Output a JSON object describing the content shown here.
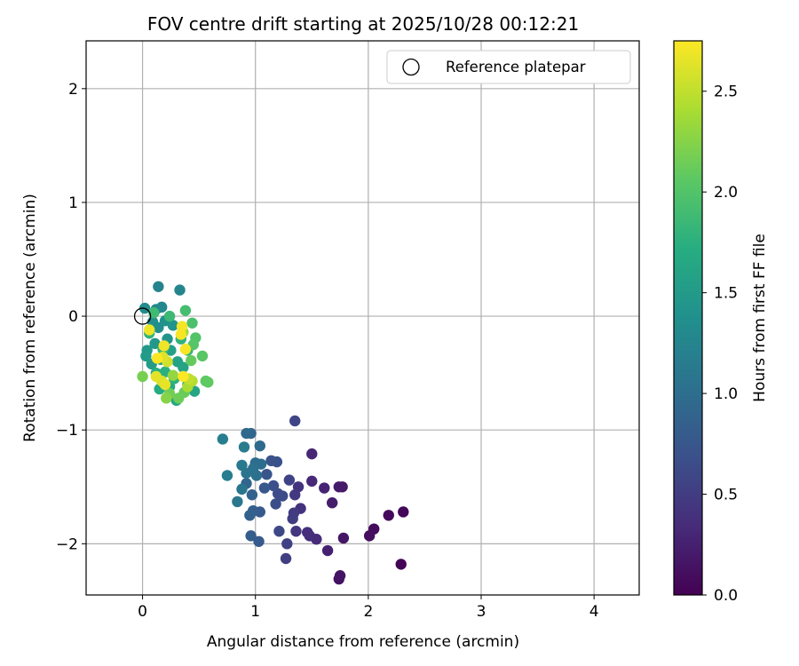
{
  "chart_data": {
    "type": "scatter",
    "title": "FOV centre drift starting at 2025/10/28 00:12:21",
    "xlabel": "Angular distance from reference (arcmin)",
    "ylabel": "Rotation from reference (arcmin)",
    "xlim": [
      -0.5,
      4.4
    ],
    "ylim": [
      -2.45,
      2.42
    ],
    "xticks": [
      0,
      1,
      2,
      3,
      4
    ],
    "yticks": [
      -2,
      -1,
      0,
      1,
      2
    ],
    "xtick_labels": [
      "0",
      "1",
      "2",
      "3",
      "4"
    ],
    "ytick_labels": [
      "−2",
      "−1",
      "0",
      "1",
      "2"
    ],
    "grid": true,
    "legend": {
      "position": "upper-right",
      "entries": [
        "Reference platepar"
      ]
    },
    "reference_point": {
      "x": 0,
      "y": 0,
      "label": "Reference platepar"
    },
    "colorbar": {
      "label": "Hours from first FF file",
      "colormap": "viridis",
      "range": [
        0.0,
        2.75
      ],
      "ticks": [
        0.0,
        0.5,
        1.0,
        1.5,
        2.0,
        2.5
      ],
      "tick_labels": [
        "0.0",
        "0.5",
        "1.0",
        "1.5",
        "2.0",
        "2.5"
      ]
    },
    "points": [
      {
        "x": 2.29,
        "y": -2.18,
        "t": 0.02
      },
      {
        "x": 2.31,
        "y": -1.72,
        "t": 0.04
      },
      {
        "x": 2.18,
        "y": -1.75,
        "t": 0.06
      },
      {
        "x": 2.05,
        "y": -1.87,
        "t": 0.08
      },
      {
        "x": 2.01,
        "y": -1.93,
        "t": 0.1
      },
      {
        "x": 1.74,
        "y": -2.31,
        "t": 0.12
      },
      {
        "x": 1.75,
        "y": -2.28,
        "t": 0.14
      },
      {
        "x": 1.78,
        "y": -1.95,
        "t": 0.16
      },
      {
        "x": 1.77,
        "y": -1.5,
        "t": 0.18
      },
      {
        "x": 1.74,
        "y": -1.5,
        "t": 0.2
      },
      {
        "x": 1.68,
        "y": -1.64,
        "t": 0.22
      },
      {
        "x": 1.64,
        "y": -2.06,
        "t": 0.25
      },
      {
        "x": 1.61,
        "y": -1.51,
        "t": 0.28
      },
      {
        "x": 1.5,
        "y": -1.21,
        "t": 0.3
      },
      {
        "x": 1.5,
        "y": -1.45,
        "t": 0.32
      },
      {
        "x": 1.54,
        "y": -1.96,
        "t": 0.34
      },
      {
        "x": 1.48,
        "y": -1.93,
        "t": 0.36
      },
      {
        "x": 1.46,
        "y": -1.9,
        "t": 0.38
      },
      {
        "x": 1.4,
        "y": -1.69,
        "t": 0.4
      },
      {
        "x": 1.38,
        "y": -1.5,
        "t": 0.42
      },
      {
        "x": 1.36,
        "y": -1.89,
        "t": 0.44
      },
      {
        "x": 1.35,
        "y": -1.57,
        "t": 0.46
      },
      {
        "x": 1.34,
        "y": -1.73,
        "t": 0.48
      },
      {
        "x": 1.33,
        "y": -1.78,
        "t": 0.5
      },
      {
        "x": 1.27,
        "y": -2.13,
        "t": 0.52
      },
      {
        "x": 1.28,
        "y": -2.0,
        "t": 0.54
      },
      {
        "x": 1.3,
        "y": -1.44,
        "t": 0.56
      },
      {
        "x": 1.35,
        "y": -0.92,
        "t": 0.58
      },
      {
        "x": 1.21,
        "y": -1.89,
        "t": 0.6
      },
      {
        "x": 1.24,
        "y": -1.58,
        "t": 0.62
      },
      {
        "x": 1.2,
        "y": -1.56,
        "t": 0.64
      },
      {
        "x": 1.18,
        "y": -1.65,
        "t": 0.66
      },
      {
        "x": 1.16,
        "y": -1.49,
        "t": 0.68
      },
      {
        "x": 1.19,
        "y": -1.28,
        "t": 0.7
      },
      {
        "x": 1.14,
        "y": -1.27,
        "t": 0.72
      },
      {
        "x": 1.1,
        "y": -1.39,
        "t": 0.74
      },
      {
        "x": 1.08,
        "y": -1.51,
        "t": 0.76
      },
      {
        "x": 1.04,
        "y": -1.72,
        "t": 0.78
      },
      {
        "x": 1.03,
        "y": -1.98,
        "t": 0.8
      },
      {
        "x": 0.96,
        "y": -1.93,
        "t": 0.82
      },
      {
        "x": 0.98,
        "y": -1.71,
        "t": 0.84
      },
      {
        "x": 0.95,
        "y": -1.75,
        "t": 0.86
      },
      {
        "x": 0.97,
        "y": -1.57,
        "t": 0.88
      },
      {
        "x": 0.92,
        "y": -1.47,
        "t": 0.9
      },
      {
        "x": 0.96,
        "y": -1.03,
        "t": 0.92
      },
      {
        "x": 0.92,
        "y": -1.03,
        "t": 0.94
      },
      {
        "x": 1.04,
        "y": -1.14,
        "t": 0.96
      },
      {
        "x": 1.05,
        "y": -1.3,
        "t": 0.98
      },
      {
        "x": 1.0,
        "y": -1.29,
        "t": 1.0
      },
      {
        "x": 1.01,
        "y": -1.4,
        "t": 1.02
      },
      {
        "x": 0.98,
        "y": -1.34,
        "t": 1.04
      },
      {
        "x": 0.92,
        "y": -1.38,
        "t": 1.06
      },
      {
        "x": 0.88,
        "y": -1.52,
        "t": 1.08
      },
      {
        "x": 0.84,
        "y": -1.63,
        "t": 1.1
      },
      {
        "x": 0.88,
        "y": -1.31,
        "t": 1.12
      },
      {
        "x": 0.9,
        "y": -1.15,
        "t": 1.14
      },
      {
        "x": 0.75,
        "y": -1.4,
        "t": 1.16
      },
      {
        "x": 0.71,
        "y": -1.08,
        "t": 1.18
      },
      {
        "x": 0.14,
        "y": 0.26,
        "t": 1.22
      },
      {
        "x": 0.33,
        "y": 0.23,
        "t": 1.25
      },
      {
        "x": 0.17,
        "y": 0.08,
        "t": 1.28
      },
      {
        "x": 0.12,
        "y": 0.06,
        "t": 1.3
      },
      {
        "x": 0.02,
        "y": 0.07,
        "t": 1.33
      },
      {
        "x": 0.09,
        "y": -0.05,
        "t": 1.36
      },
      {
        "x": 0.14,
        "y": -0.1,
        "t": 1.38
      },
      {
        "x": 0.2,
        "y": -0.04,
        "t": 1.4
      },
      {
        "x": 0.27,
        "y": -0.08,
        "t": 1.42
      },
      {
        "x": 0.22,
        "y": -0.2,
        "t": 1.44
      },
      {
        "x": 0.11,
        "y": -0.24,
        "t": 1.46
      },
      {
        "x": 0.04,
        "y": -0.3,
        "t": 1.48
      },
      {
        "x": 0.03,
        "y": -0.35,
        "t": 1.5
      },
      {
        "x": 0.08,
        "y": -0.42,
        "t": 1.52
      },
      {
        "x": 0.16,
        "y": -0.38,
        "t": 1.54
      },
      {
        "x": 0.25,
        "y": -0.3,
        "t": 1.56
      },
      {
        "x": 0.31,
        "y": -0.4,
        "t": 1.58
      },
      {
        "x": 0.36,
        "y": -0.45,
        "t": 1.6
      },
      {
        "x": 0.46,
        "y": -0.66,
        "t": 1.62
      },
      {
        "x": 0.4,
        "y": -0.6,
        "t": 1.64
      },
      {
        "x": 0.3,
        "y": -0.74,
        "t": 1.66
      },
      {
        "x": 0.24,
        "y": -0.62,
        "t": 1.68
      },
      {
        "x": 0.15,
        "y": -0.64,
        "t": 1.7
      },
      {
        "x": 0.12,
        "y": -0.5,
        "t": 1.72
      },
      {
        "x": 0.2,
        "y": -0.49,
        "t": 1.74
      },
      {
        "x": 0.28,
        "y": -0.55,
        "t": 1.76
      },
      {
        "x": 0.34,
        "y": -0.2,
        "t": 1.78
      },
      {
        "x": 0.06,
        "y": -0.15,
        "t": 1.8
      },
      {
        "x": 0.4,
        "y": -0.3,
        "t": 1.82
      },
      {
        "x": 0.18,
        "y": -0.29,
        "t": 1.84
      },
      {
        "x": 0.24,
        "y": 0.0,
        "t": 1.86
      },
      {
        "x": 0.1,
        "y": 0.03,
        "t": 1.88
      },
      {
        "x": 0.38,
        "y": 0.05,
        "t": 1.92
      },
      {
        "x": 0.44,
        "y": -0.06,
        "t": 1.96
      },
      {
        "x": 0.47,
        "y": -0.19,
        "t": 2.0
      },
      {
        "x": 0.45,
        "y": -0.25,
        "t": 2.02
      },
      {
        "x": 0.53,
        "y": -0.35,
        "t": 2.04
      },
      {
        "x": 0.56,
        "y": -0.57,
        "t": 2.06
      },
      {
        "x": 0.58,
        "y": -0.58,
        "t": 2.08
      },
      {
        "x": 0.43,
        "y": -0.39,
        "t": 2.1
      },
      {
        "x": 0.37,
        "y": -0.67,
        "t": 2.12
      },
      {
        "x": 0.32,
        "y": -0.72,
        "t": 2.14
      },
      {
        "x": 0.24,
        "y": -0.68,
        "t": 2.16
      },
      {
        "x": 0.0,
        "y": -0.53,
        "t": 2.18
      },
      {
        "x": 0.21,
        "y": -0.72,
        "t": 2.25
      },
      {
        "x": 0.27,
        "y": -0.52,
        "t": 2.3
      },
      {
        "x": 0.36,
        "y": -0.14,
        "t": 2.35
      },
      {
        "x": 0.4,
        "y": -0.62,
        "t": 2.4
      },
      {
        "x": 0.44,
        "y": -0.57,
        "t": 2.45
      },
      {
        "x": 0.41,
        "y": -0.55,
        "t": 2.5
      },
      {
        "x": 0.22,
        "y": -0.4,
        "t": 2.55
      },
      {
        "x": 0.17,
        "y": -0.57,
        "t": 2.6
      },
      {
        "x": 0.18,
        "y": -0.36,
        "t": 2.62
      },
      {
        "x": 0.12,
        "y": -0.53,
        "t": 2.64
      },
      {
        "x": 0.2,
        "y": -0.6,
        "t": 2.66
      },
      {
        "x": 0.06,
        "y": -0.12,
        "t": 2.68
      },
      {
        "x": 0.19,
        "y": -0.26,
        "t": 2.7
      },
      {
        "x": 0.35,
        "y": -0.09,
        "t": 2.71
      },
      {
        "x": 0.34,
        "y": -0.16,
        "t": 2.72
      },
      {
        "x": 0.38,
        "y": -0.29,
        "t": 2.73
      },
      {
        "x": 0.13,
        "y": -0.37,
        "t": 2.74
      },
      {
        "x": 0.36,
        "y": -0.53,
        "t": 2.74
      }
    ]
  }
}
